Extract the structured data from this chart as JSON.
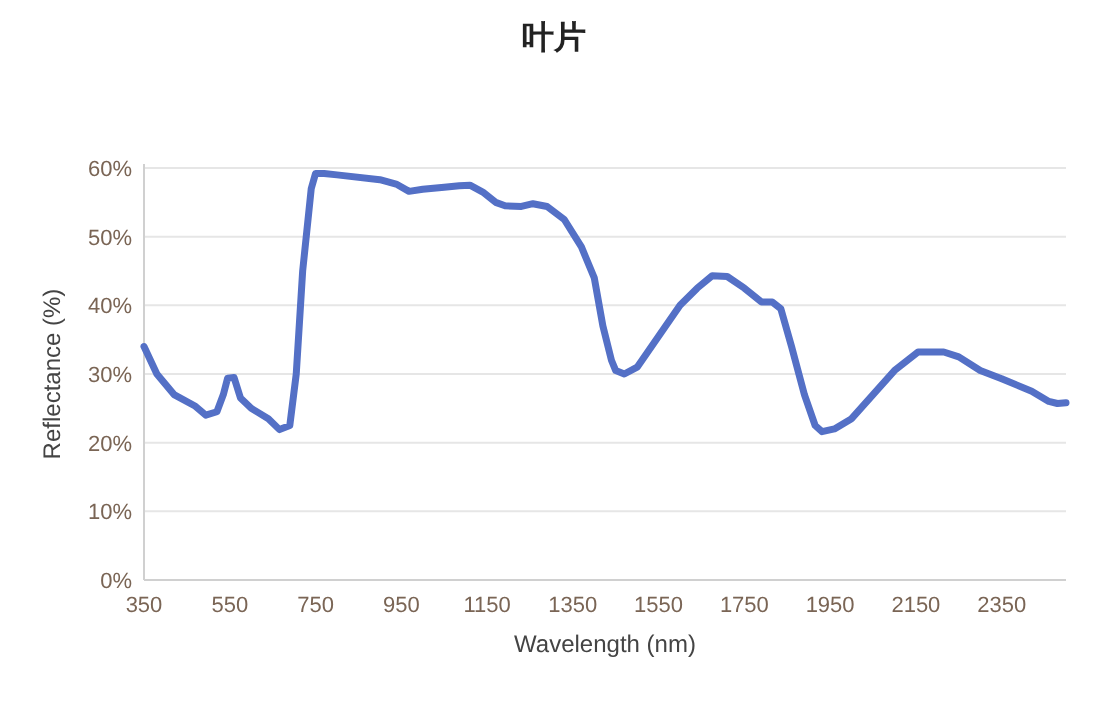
{
  "chart_data": {
    "type": "line",
    "title": "叶片",
    "xlabel": "Wavelength (nm)",
    "ylabel": "Reflectance (%)",
    "x": [
      350,
      380,
      420,
      470,
      494,
      520,
      535,
      545,
      560,
      575,
      600,
      640,
      666,
      690,
      705,
      720,
      740,
      750,
      770,
      800,
      900,
      940,
      968,
      1000,
      1050,
      1085,
      1110,
      1140,
      1170,
      1192,
      1230,
      1257,
      1290,
      1330,
      1370,
      1400,
      1420,
      1440,
      1450,
      1470,
      1500,
      1550,
      1600,
      1640,
      1675,
      1710,
      1750,
      1790,
      1815,
      1835,
      1860,
      1890,
      1915,
      1931,
      1960,
      2000,
      2050,
      2100,
      2155,
      2215,
      2250,
      2300,
      2350,
      2420,
      2460,
      2480,
      2500
    ],
    "series": [
      {
        "color": "#5470c6",
        "values": [
          34,
          30,
          27,
          25.3,
          24,
          24.5,
          27,
          29.4,
          29.5,
          26.5,
          25,
          23.5,
          21.9,
          22.5,
          30,
          45,
          57,
          59.2,
          59.2,
          59,
          58.3,
          57.6,
          56.6,
          56.9,
          57.2,
          57.4,
          57.5,
          56.5,
          55,
          54.5,
          54.4,
          54.8,
          54.4,
          52.5,
          48.5,
          44,
          37,
          32,
          30.5,
          30,
          31,
          35.5,
          40,
          42.5,
          44.3,
          44.2,
          42.5,
          40.5,
          40.5,
          39.5,
          34,
          27,
          22.5,
          21.6,
          22,
          23.5,
          27,
          30.5,
          33.2,
          33.2,
          32.5,
          30.5,
          29.3,
          27.5,
          26,
          25.7,
          25.8
        ]
      }
    ],
    "xlim": [
      350,
      2500
    ],
    "xticks": [
      350,
      550,
      750,
      950,
      1150,
      1350,
      1550,
      1750,
      1950,
      2150,
      2350
    ],
    "ylim": [
      0,
      60
    ],
    "yticks": [
      {
        "value": 0,
        "label": "0%"
      },
      {
        "value": 10,
        "label": "10%"
      },
      {
        "value": 20,
        "label": "20%"
      },
      {
        "value": 30,
        "label": "30%"
      },
      {
        "value": 40,
        "label": "40%"
      },
      {
        "value": 50,
        "label": "50%"
      },
      {
        "value": 60,
        "label": "60%"
      }
    ],
    "grid": "y",
    "line_style": "solid"
  }
}
